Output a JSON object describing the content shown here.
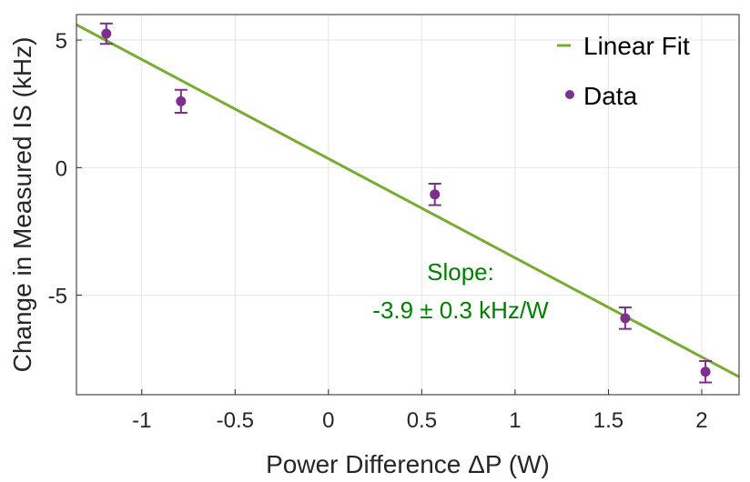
{
  "chart_data": {
    "type": "scatter",
    "title": "",
    "xlabel": "Power Difference ΔP (W)",
    "ylabel": "Change in Measured IS (kHz)",
    "xlim": [
      -1.35,
      2.2
    ],
    "ylim": [
      -8.9,
      6.0
    ],
    "x_ticks": [
      -1,
      -0.5,
      0,
      0.5,
      1,
      1.5,
      2
    ],
    "x_tick_labels": [
      "-1",
      "-0.5",
      "0",
      "0.5",
      "1",
      "1.5",
      "2"
    ],
    "y_ticks": [
      5,
      0,
      -5
    ],
    "y_tick_labels": [
      "5",
      "0",
      "-5"
    ],
    "grid": true,
    "legend_position": "top-right",
    "series": [
      {
        "name": "Linear Fit",
        "kind": "line",
        "color": "#77AC30",
        "x": [
          -1.35,
          2.2
        ],
        "y": [
          5.6,
          -8.2
        ]
      },
      {
        "name": "Data",
        "kind": "errorbar",
        "color": "#7E2F8E",
        "x": [
          -1.19,
          -0.79,
          0.57,
          1.59,
          2.02
        ],
        "y": [
          5.25,
          2.6,
          -1.05,
          -5.9,
          -8.0
        ],
        "err": [
          0.4,
          0.45,
          0.42,
          0.42,
          0.42
        ]
      }
    ],
    "annotation": {
      "line1": "Slope:",
      "line2": "-3.9 ± 0.3 kHz/W",
      "color": "#008000"
    }
  }
}
